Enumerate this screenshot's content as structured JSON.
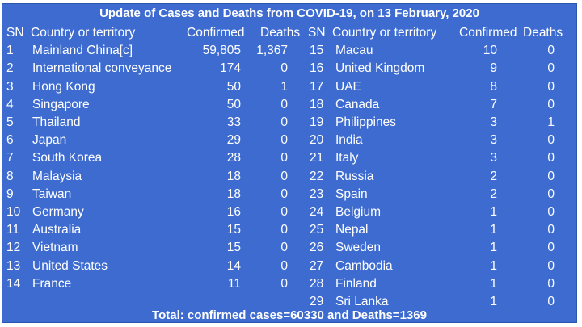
{
  "title": "Update of Cases and Deaths from COVID-19, on 13 February, 2020",
  "headers": {
    "sn": "SN",
    "country": "Country or territory",
    "confirmed": "Confirmed",
    "deaths": "Deaths"
  },
  "left_rows": [
    {
      "sn": "1",
      "country": "Mainland China[c]",
      "confirmed": "59,805",
      "deaths": "1,367"
    },
    {
      "sn": "2",
      "country": "International conveyance",
      "confirmed": "174",
      "deaths": "0"
    },
    {
      "sn": "3",
      "country": "Hong Kong",
      "confirmed": "50",
      "deaths": "1"
    },
    {
      "sn": "4",
      "country": "Singapore",
      "confirmed": "50",
      "deaths": "0"
    },
    {
      "sn": "5",
      "country": "Thailand",
      "confirmed": "33",
      "deaths": "0"
    },
    {
      "sn": "6",
      "country": "Japan",
      "confirmed": "29",
      "deaths": "0"
    },
    {
      "sn": "7",
      "country": "South Korea",
      "confirmed": "28",
      "deaths": "0"
    },
    {
      "sn": "8",
      "country": "Malaysia",
      "confirmed": "18",
      "deaths": "0"
    },
    {
      "sn": "9",
      "country": "Taiwan",
      "confirmed": "18",
      "deaths": "0"
    },
    {
      "sn": "10",
      "country": "Germany",
      "confirmed": "16",
      "deaths": "0"
    },
    {
      "sn": "11",
      "country": "Australia",
      "confirmed": "15",
      "deaths": "0"
    },
    {
      "sn": "12",
      "country": "Vietnam",
      "confirmed": "15",
      "deaths": "0"
    },
    {
      "sn": "13",
      "country": "United States",
      "confirmed": "14",
      "deaths": "0"
    },
    {
      "sn": "14",
      "country": "France",
      "confirmed": "11",
      "deaths": "0"
    }
  ],
  "right_rows": [
    {
      "sn": "15",
      "country": "Macau",
      "confirmed": "10",
      "deaths": "0"
    },
    {
      "sn": "16",
      "country": "United Kingdom",
      "confirmed": "9",
      "deaths": "0"
    },
    {
      "sn": "17",
      "country": "UAE",
      "confirmed": "8",
      "deaths": "0"
    },
    {
      "sn": "18",
      "country": "Canada",
      "confirmed": "7",
      "deaths": "0"
    },
    {
      "sn": "19",
      "country": "Philippines",
      "confirmed": "3",
      "deaths": "1"
    },
    {
      "sn": "20",
      "country": "India",
      "confirmed": "3",
      "deaths": "0"
    },
    {
      "sn": "21",
      "country": "Italy",
      "confirmed": "3",
      "deaths": "0"
    },
    {
      "sn": "22",
      "country": "Russia",
      "confirmed": "2",
      "deaths": "0"
    },
    {
      "sn": "23",
      "country": "Spain",
      "confirmed": "2",
      "deaths": "0"
    },
    {
      "sn": "24",
      "country": "Belgium",
      "confirmed": "1",
      "deaths": "0"
    },
    {
      "sn": "25",
      "country": "Nepal",
      "confirmed": "1",
      "deaths": "0"
    },
    {
      "sn": "26",
      "country": "Sweden",
      "confirmed": "1",
      "deaths": "0"
    },
    {
      "sn": "27",
      "country": "Cambodia",
      "confirmed": "1",
      "deaths": "0"
    },
    {
      "sn": "28",
      "country": "Finland",
      "confirmed": "1",
      "deaths": "0"
    },
    {
      "sn": "29",
      "country": "Sri Lanka",
      "confirmed": "1",
      "deaths": "0"
    }
  ],
  "footer": "Total: confirmed cases=60330 and Deaths=1369",
  "colors": {
    "background": "#3d6bd0",
    "text": "#ffffff"
  }
}
